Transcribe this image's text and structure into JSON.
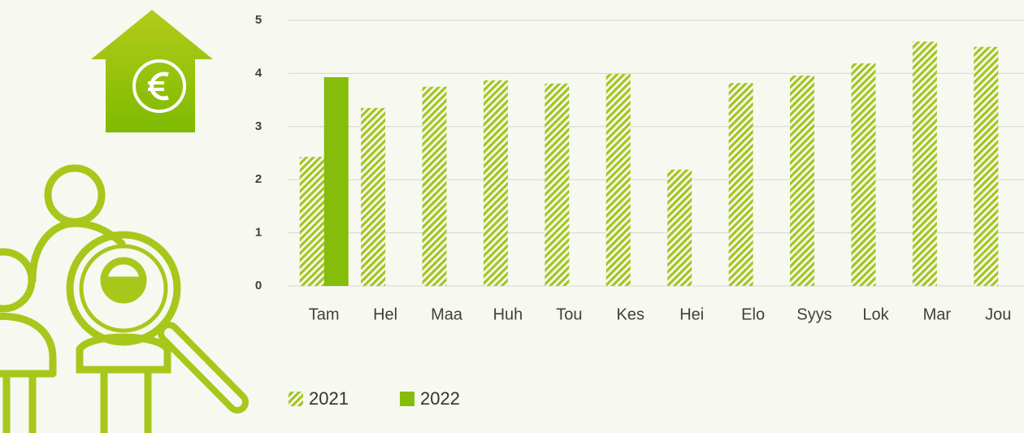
{
  "chart_data": {
    "type": "bar",
    "categories": [
      "Tam",
      "Hel",
      "Maa",
      "Huh",
      "Tou",
      "Kes",
      "Hei",
      "Elo",
      "Syys",
      "Lok",
      "Mar",
      "Jou"
    ],
    "series": [
      {
        "name": "2021",
        "color": "#a3c520",
        "hatch": true,
        "values": [
          2.43,
          3.35,
          3.75,
          3.87,
          3.81,
          3.99,
          2.19,
          3.82,
          3.96,
          4.19,
          4.6,
          4.5
        ]
      },
      {
        "name": "2022",
        "color": "#86bc0c",
        "hatch": false,
        "values": [
          3.93,
          null,
          null,
          null,
          null,
          null,
          null,
          null,
          null,
          null,
          null,
          null
        ]
      }
    ],
    "ylim": [
      0,
      5
    ],
    "yticks": [
      0,
      1,
      2,
      3,
      4,
      5
    ],
    "grid": true
  }
}
